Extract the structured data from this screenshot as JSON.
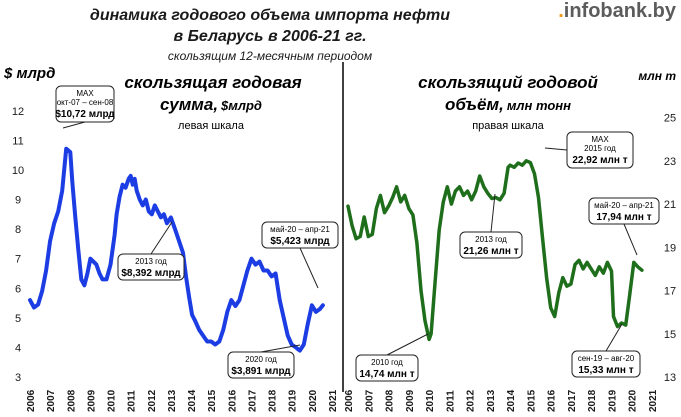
{
  "header": {
    "title_line1": "динамика годового объема импорта нефти",
    "title_line2": "в Беларусь в 2006-21 гг.",
    "subtitle": "скользящим 12-месячным периодом",
    "logo": ".infobank.by"
  },
  "left_panel": {
    "unit_label": "$ млрд",
    "heading_line1": "скользящая годовая",
    "heading_line2": "сумма,",
    "heading_unit": "$млрд",
    "scale_note": "левая шкала"
  },
  "right_panel": {
    "unit_label": "млн т",
    "heading_line1": "скользящий годовой",
    "heading_line2": "объём,",
    "heading_unit": "млн тонн",
    "scale_note": "правая шкала"
  },
  "colors": {
    "left_series": "#1c3de4",
    "right_series": "#1e6e1b",
    "divider": "#000000"
  },
  "chart_data": [
    {
      "type": "line",
      "title": "скользящая годовая сумма, $млрд",
      "ylabel": "$ млрд",
      "ylim": [
        3,
        12.5
      ],
      "y_ticks": [
        3,
        4,
        5,
        6,
        7,
        8,
        9,
        10,
        11,
        12
      ],
      "x_ticks": [
        "2006",
        "2007",
        "2008",
        "2009",
        "2010",
        "2011",
        "2012",
        "2013",
        "2014",
        "2015",
        "2016",
        "2017",
        "2018",
        "2019",
        "2020",
        "2021"
      ],
      "xlim": [
        2006,
        2021
      ],
      "grid": false,
      "series": [
        {
          "x": [
            2006.0,
            2006.2,
            2006.4,
            2006.6,
            2006.8,
            2007.0,
            2007.2,
            2007.4,
            2007.6,
            2007.8,
            2008.0,
            2008.1,
            2008.25,
            2008.4,
            2008.55,
            2008.7,
            2008.85,
            2009.0,
            2009.15,
            2009.3,
            2009.45,
            2009.6,
            2009.8,
            2010.0,
            2010.2,
            2010.3,
            2010.45,
            2010.6,
            2010.75,
            2010.9,
            2011.0,
            2011.1,
            2011.2,
            2011.3,
            2011.45,
            2011.6,
            2011.75,
            2011.9,
            2012.05,
            2012.2,
            2012.35,
            2012.5,
            2012.65,
            2012.8,
            2013.0,
            2013.2,
            2013.4,
            2013.6,
            2013.75,
            2013.9,
            2014.05,
            2014.2,
            2014.4,
            2014.6,
            2014.8,
            2015.0,
            2015.2,
            2015.4,
            2015.6,
            2015.8,
            2016.0,
            2016.2,
            2016.4,
            2016.6,
            2016.8,
            2017.0,
            2017.2,
            2017.4,
            2017.6,
            2017.8,
            2018.0,
            2018.2,
            2018.4,
            2018.6,
            2018.8,
            2019.0,
            2019.2,
            2019.4,
            2019.6,
            2019.8,
            2020.0,
            2020.2,
            2020.4,
            2020.55
          ],
          "values": [
            5.6,
            5.35,
            5.45,
            5.9,
            6.6,
            7.6,
            8.2,
            8.6,
            9.3,
            10.72,
            10.6,
            9.6,
            8.4,
            7.3,
            6.3,
            6.1,
            6.5,
            7.0,
            6.9,
            6.8,
            6.5,
            6.3,
            6.3,
            6.8,
            7.8,
            8.5,
            9.1,
            9.5,
            9.4,
            9.7,
            9.8,
            9.5,
            9.7,
            9.3,
            9.0,
            8.8,
            9.0,
            8.6,
            8.5,
            8.8,
            8.6,
            8.4,
            8.5,
            8.2,
            8.392,
            8.0,
            7.6,
            7.2,
            6.4,
            5.7,
            5.1,
            4.9,
            4.6,
            4.4,
            4.2,
            4.2,
            4.1,
            4.2,
            4.6,
            5.2,
            5.6,
            5.4,
            5.6,
            6.1,
            6.6,
            7.0,
            6.8,
            6.9,
            6.6,
            6.6,
            6.4,
            6.5,
            5.6,
            5.0,
            4.4,
            4.1,
            4.0,
            3.891,
            4.1,
            4.8,
            5.423,
            5.2,
            5.3,
            5.423
          ]
        }
      ],
      "annotations": [
        {
          "id": "max",
          "line1": "MAX",
          "line2": "окт-07 – сен-08",
          "line3": "$10,72 млрд",
          "x": 2007.8,
          "y": 10.72
        },
        {
          "id": "y2013",
          "line1": "2013 год",
          "line2": "$8,392 млрд",
          "x": 2013.0,
          "y": 8.392
        },
        {
          "id": "y2020",
          "line1": "2020 год",
          "line2": "$3,891 млрд",
          "x": 2019.4,
          "y": 3.891
        },
        {
          "id": "last",
          "line1": "май-20 – апр-21",
          "line2": "$5,423 млрд",
          "x": 2020.55,
          "y": 5.423
        }
      ]
    },
    {
      "type": "line",
      "title": "скользящий годовой объём, млн тонн",
      "ylabel": "млн т",
      "ylim": [
        13,
        26
      ],
      "y_ticks": [
        13,
        15,
        17,
        19,
        21,
        23,
        25
      ],
      "x_ticks": [
        "2006",
        "2007",
        "2008",
        "2009",
        "2010",
        "2011",
        "2012",
        "2013",
        "2014",
        "2015",
        "2016",
        "2017",
        "2018",
        "2019",
        "2020",
        "2021"
      ],
      "xlim": [
        2006,
        2021
      ],
      "grid": false,
      "series": [
        {
          "x": [
            2006.0,
            2006.2,
            2006.4,
            2006.6,
            2006.8,
            2007.0,
            2007.2,
            2007.4,
            2007.6,
            2007.8,
            2008.0,
            2008.2,
            2008.4,
            2008.6,
            2008.8,
            2009.0,
            2009.2,
            2009.4,
            2009.6,
            2009.8,
            2010.0,
            2010.1,
            2010.3,
            2010.5,
            2010.7,
            2010.9,
            2011.1,
            2011.3,
            2011.5,
            2011.7,
            2011.9,
            2012.1,
            2012.3,
            2012.5,
            2012.7,
            2012.9,
            2013.1,
            2013.3,
            2013.5,
            2013.7,
            2013.9,
            2014.0,
            2014.2,
            2014.4,
            2014.6,
            2014.8,
            2015.0,
            2015.2,
            2015.4,
            2015.6,
            2015.8,
            2016.0,
            2016.2,
            2016.4,
            2016.6,
            2016.8,
            2017.0,
            2017.2,
            2017.4,
            2017.6,
            2017.8,
            2018.0,
            2018.2,
            2018.4,
            2018.6,
            2018.8,
            2019.0,
            2019.1,
            2019.3,
            2019.5,
            2019.7,
            2019.9,
            2020.1,
            2020.3,
            2020.5
          ],
          "values": [
            20.9,
            20.0,
            19.4,
            19.5,
            20.4,
            19.5,
            19.6,
            20.8,
            21.4,
            20.6,
            20.9,
            21.3,
            21.8,
            21.1,
            21.4,
            20.8,
            20.5,
            19.2,
            17.0,
            15.6,
            14.74,
            15.0,
            17.4,
            19.8,
            21.1,
            21.8,
            21.0,
            21.6,
            21.8,
            21.4,
            21.6,
            21.2,
            21.6,
            22.3,
            21.8,
            21.5,
            21.26,
            21.3,
            21.2,
            21.5,
            22.7,
            22.8,
            22.7,
            22.9,
            22.8,
            23.0,
            22.92,
            22.4,
            21.3,
            19.4,
            17.6,
            16.2,
            15.8,
            16.9,
            17.6,
            17.2,
            17.3,
            18.2,
            18.4,
            18.0,
            18.3,
            18.0,
            17.7,
            18.1,
            17.8,
            18.3,
            17.9,
            15.8,
            15.33,
            15.5,
            15.4,
            16.8,
            18.3,
            18.1,
            17.94
          ]
        }
      ],
      "annotations": [
        {
          "id": "y2010",
          "line1": "2010 год",
          "line2": "14,74 млн т",
          "x": 2010.0,
          "y": 14.74
        },
        {
          "id": "y2013",
          "line1": "2013 год",
          "line2": "21,26 млн т",
          "x": 2013.1,
          "y": 21.26
        },
        {
          "id": "max",
          "line1": "MAX",
          "line2": "2015 год",
          "line3": "22,92 млн т",
          "x": 2015.0,
          "y": 22.92
        },
        {
          "id": "min",
          "line1": "сен-19 – авг-20",
          "line2": "15,33 млн т",
          "x": 2019.3,
          "y": 15.33
        },
        {
          "id": "last",
          "line1": "май-20 – апр-21",
          "line2": "17,94 млн т",
          "x": 2020.5,
          "y": 17.94
        }
      ]
    }
  ]
}
